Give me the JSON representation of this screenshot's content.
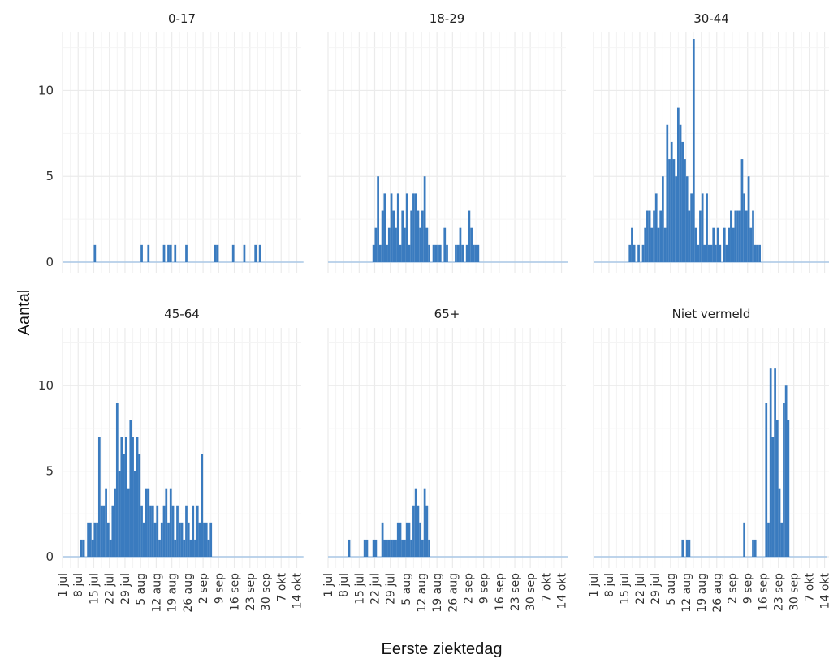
{
  "chart_data": {
    "type": "bar",
    "layout": "facet-grid 2x3",
    "xlabel": "Eerste ziektedag",
    "ylabel": "Aantal",
    "ylim": [
      0,
      13
    ],
    "yticks": [
      0,
      5,
      10
    ],
    "x_domain": [
      "2020-07-01",
      "2020-10-16"
    ],
    "xticks": [
      {
        "date": "2020-07-01",
        "label": "1 jul"
      },
      {
        "date": "2020-07-08",
        "label": "8 jul"
      },
      {
        "date": "2020-07-15",
        "label": "15 jul"
      },
      {
        "date": "2020-07-22",
        "label": "22 jul"
      },
      {
        "date": "2020-07-29",
        "label": "29 jul"
      },
      {
        "date": "2020-08-05",
        "label": "5 aug"
      },
      {
        "date": "2020-08-12",
        "label": "12 aug"
      },
      {
        "date": "2020-08-19",
        "label": "19 aug"
      },
      {
        "date": "2020-08-26",
        "label": "26 aug"
      },
      {
        "date": "2020-09-02",
        "label": "2 sep"
      },
      {
        "date": "2020-09-09",
        "label": "9 sep"
      },
      {
        "date": "2020-09-16",
        "label": "16 sep"
      },
      {
        "date": "2020-09-23",
        "label": "23 sep"
      },
      {
        "date": "2020-09-30",
        "label": "30 sep"
      },
      {
        "date": "2020-10-07",
        "label": "7 okt"
      },
      {
        "date": "2020-10-14",
        "label": "14 okt"
      }
    ],
    "grid": true,
    "bar_color": "#3a7bbf",
    "baseline_color": "#a9c8e6",
    "grid_color": "#ebebeb",
    "series": [
      {
        "name": "0-17",
        "start": "2020-07-01",
        "values": [
          0,
          0,
          0,
          0,
          0,
          0,
          0,
          0,
          0,
          0,
          0,
          0,
          0,
          0,
          1,
          0,
          0,
          0,
          0,
          0,
          0,
          0,
          0,
          0,
          0,
          0,
          0,
          0,
          0,
          0,
          0,
          0,
          0,
          0,
          0,
          1,
          0,
          0,
          1,
          0,
          0,
          0,
          0,
          0,
          0,
          1,
          0,
          1,
          1,
          0,
          1,
          0,
          0,
          0,
          0,
          1,
          0,
          0,
          0,
          0,
          0,
          0,
          0,
          0,
          0,
          0,
          0,
          0,
          1,
          1,
          0,
          0,
          0,
          0,
          0,
          0,
          1,
          0,
          0,
          0,
          0,
          1,
          0,
          0,
          0,
          0,
          1,
          0,
          1,
          0,
          0,
          0,
          0,
          0,
          0,
          0,
          0,
          0,
          0,
          0,
          0,
          0,
          0,
          0,
          0,
          0,
          0,
          0
        ]
      },
      {
        "name": "18-29",
        "start": "2020-07-01",
        "values": [
          0,
          0,
          0,
          0,
          0,
          0,
          0,
          0,
          0,
          0,
          0,
          0,
          0,
          0,
          0,
          0,
          0,
          0,
          0,
          0,
          1,
          2,
          5,
          1,
          3,
          4,
          1,
          2,
          4,
          3,
          2,
          4,
          1,
          3,
          2,
          4,
          1,
          3,
          4,
          4,
          3,
          2,
          3,
          5,
          2,
          1,
          0,
          1,
          1,
          1,
          1,
          0,
          2,
          1,
          0,
          0,
          0,
          1,
          1,
          2,
          1,
          0,
          1,
          3,
          2,
          1,
          1,
          1,
          0,
          0,
          0,
          0,
          0,
          0,
          0,
          0,
          0,
          0,
          0,
          0,
          0,
          0,
          0,
          0,
          0,
          0,
          0,
          0,
          0,
          0,
          0,
          0,
          0,
          0,
          0,
          0,
          0,
          0,
          0,
          0,
          0,
          0,
          0,
          0,
          0,
          0,
          0,
          0
        ]
      },
      {
        "name": "30-44",
        "start": "2020-07-01",
        "values": [
          0,
          0,
          0,
          0,
          0,
          0,
          0,
          0,
          0,
          0,
          0,
          0,
          0,
          0,
          0,
          0,
          1,
          2,
          1,
          0,
          1,
          0,
          1,
          2,
          3,
          3,
          2,
          3,
          4,
          2,
          3,
          5,
          2,
          8,
          6,
          7,
          6,
          5,
          9,
          8,
          7,
          6,
          5,
          3,
          4,
          13,
          2,
          1,
          3,
          4,
          1,
          4,
          1,
          1,
          2,
          1,
          2,
          1,
          0,
          2,
          1,
          2,
          3,
          2,
          3,
          3,
          3,
          6,
          4,
          3,
          5,
          2,
          3,
          1,
          1,
          1,
          0,
          0,
          0,
          0,
          0,
          0,
          0,
          0,
          0,
          0,
          0,
          0,
          0,
          0,
          0,
          0,
          0,
          0,
          0,
          0,
          0,
          0,
          0,
          0,
          0,
          0,
          0,
          0,
          0,
          0,
          0,
          0
        ]
      },
      {
        "name": "45-64",
        "start": "2020-07-01",
        "values": [
          0,
          0,
          0,
          0,
          0,
          0,
          0,
          0,
          1,
          1,
          0,
          2,
          2,
          1,
          2,
          2,
          7,
          3,
          3,
          4,
          2,
          1,
          3,
          4,
          9,
          5,
          7,
          6,
          7,
          4,
          8,
          7,
          5,
          7,
          6,
          3,
          2,
          4,
          4,
          3,
          3,
          2,
          3,
          1,
          2,
          3,
          4,
          2,
          4,
          3,
          1,
          3,
          2,
          2,
          1,
          3,
          2,
          1,
          3,
          1,
          3,
          2,
          6,
          2,
          2,
          1,
          2,
          0,
          0,
          0,
          0,
          0,
          0,
          0,
          0,
          0,
          0,
          0,
          0,
          0,
          0,
          0,
          0,
          0,
          0,
          0,
          0,
          0,
          0,
          0,
          0,
          0,
          0,
          0,
          0,
          0,
          0,
          0,
          0,
          0,
          0,
          0,
          0,
          0,
          0,
          0,
          0,
          0
        ]
      },
      {
        "name": "65+",
        "start": "2020-07-01",
        "values": [
          0,
          0,
          0,
          0,
          0,
          0,
          0,
          0,
          0,
          1,
          0,
          0,
          0,
          0,
          0,
          0,
          1,
          1,
          0,
          0,
          1,
          1,
          0,
          0,
          2,
          1,
          1,
          1,
          1,
          1,
          1,
          2,
          2,
          1,
          1,
          2,
          2,
          1,
          3,
          4,
          3,
          2,
          1,
          4,
          3,
          1,
          0,
          0,
          0,
          0,
          0,
          0,
          0,
          0,
          0,
          0,
          0,
          0,
          0,
          0,
          0,
          0,
          0,
          0,
          0,
          0,
          0,
          0,
          0,
          0,
          0,
          0,
          0,
          0,
          0,
          0,
          0,
          0,
          0,
          0,
          0,
          0,
          0,
          0,
          0,
          0,
          0,
          0,
          0,
          0,
          0,
          0,
          0,
          0,
          0,
          0,
          0,
          0,
          0,
          0,
          0,
          0,
          0,
          0,
          0,
          0,
          0,
          0
        ]
      },
      {
        "name": "Niet vermeld",
        "start": "2020-07-01",
        "values": [
          0,
          0,
          0,
          0,
          0,
          0,
          0,
          0,
          0,
          0,
          0,
          0,
          0,
          0,
          0,
          0,
          0,
          0,
          0,
          0,
          0,
          0,
          0,
          0,
          0,
          0,
          0,
          0,
          0,
          0,
          0,
          0,
          0,
          0,
          0,
          0,
          0,
          0,
          0,
          0,
          1,
          0,
          1,
          1,
          0,
          0,
          0,
          0,
          0,
          0,
          0,
          0,
          0,
          0,
          0,
          0,
          0,
          0,
          0,
          0,
          0,
          0,
          0,
          0,
          0,
          0,
          0,
          0,
          2,
          0,
          0,
          0,
          1,
          1,
          0,
          0,
          0,
          0,
          9,
          2,
          11,
          7,
          11,
          8,
          4,
          2,
          9,
          10,
          8,
          0,
          0,
          0,
          0,
          0,
          0,
          0,
          0,
          0,
          0,
          0,
          0,
          0,
          0,
          0,
          0,
          0
        ]
      }
    ]
  }
}
